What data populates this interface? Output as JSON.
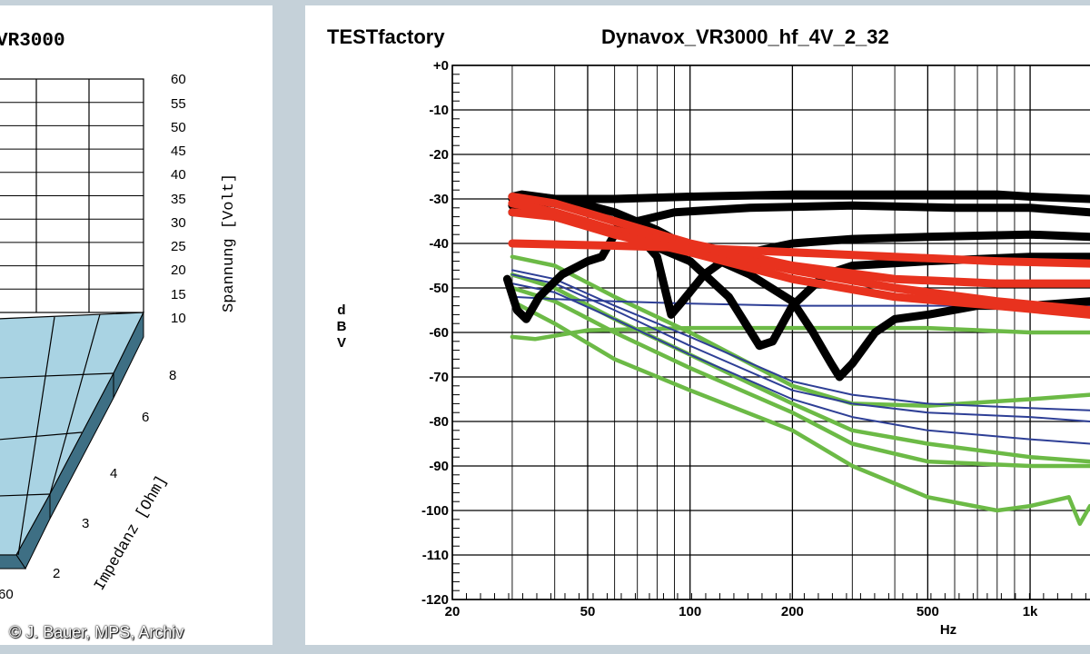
{
  "left_chart": {
    "title": "VR3000",
    "voltage_axis_label": "Spannung [Volt]",
    "voltage_ticks": [
      "60",
      "55",
      "50",
      "45",
      "40",
      "35",
      "30",
      "25",
      "20",
      "15",
      "10"
    ],
    "impedance_axis_label": "Impedanz [Ohm]",
    "impedance_ticks": [
      "8",
      "6",
      "4",
      "3",
      "2"
    ],
    "corner_label": "60",
    "surface_color": "#a9d3e3",
    "side_color": "#3e6f84"
  },
  "credit": "© J. Bauer, MPS, Archiv",
  "chart_data": {
    "type": "line",
    "brand": "TESTfactory",
    "title": "Dynavox_VR3000_hf_4V_2_32",
    "xlabel": "Hz",
    "ylabel": "dBV",
    "x_scale": "log",
    "xlim": [
      20,
      1500
    ],
    "ylim": [
      -120,
      0
    ],
    "x_tick_labels": [
      "20",
      "50",
      "100",
      "200",
      "500",
      "1k"
    ],
    "x_tick_values": [
      20,
      50,
      100,
      200,
      500,
      1000
    ],
    "y_tick_labels": [
      "+0",
      "-10",
      "-20",
      "-30",
      "-40",
      "-50",
      "-60",
      "-70",
      "-80",
      "-90",
      "-100",
      "-110",
      "-120"
    ],
    "y_tick_values": [
      0,
      -10,
      -20,
      -30,
      -40,
      -50,
      -60,
      -70,
      -80,
      -90,
      -100,
      -110,
      -120
    ],
    "grid": true,
    "series": [
      {
        "color": "#000000",
        "weight": "heavy",
        "points": [
          [
            30,
            -29.5
          ],
          [
            32,
            -29
          ],
          [
            40,
            -30
          ],
          [
            60,
            -30
          ],
          [
            100,
            -29.5
          ],
          [
            200,
            -29
          ],
          [
            400,
            -29
          ],
          [
            800,
            -29
          ],
          [
            1000,
            -29.5
          ],
          [
            1500,
            -30
          ]
        ]
      },
      {
        "color": "#000000",
        "weight": "heavy",
        "points": [
          [
            30,
            -31.5
          ],
          [
            35,
            -30.5
          ],
          [
            40,
            -31
          ],
          [
            50,
            -33
          ],
          [
            60,
            -35
          ],
          [
            70,
            -38
          ],
          [
            80,
            -43
          ],
          [
            88,
            -56
          ],
          [
            95,
            -53
          ],
          [
            110,
            -47
          ],
          [
            130,
            -43
          ],
          [
            150,
            -42
          ],
          [
            200,
            -40
          ],
          [
            300,
            -39
          ],
          [
            500,
            -38.5
          ],
          [
            1000,
            -38
          ],
          [
            1500,
            -38.5
          ]
        ]
      },
      {
        "color": "#000000",
        "weight": "heavy",
        "points": [
          [
            30,
            -33
          ],
          [
            35,
            -33
          ],
          [
            40,
            -34
          ],
          [
            50,
            -36
          ],
          [
            70,
            -39
          ],
          [
            100,
            -44
          ],
          [
            130,
            -52
          ],
          [
            160,
            -63
          ],
          [
            175,
            -62
          ],
          [
            200,
            -54
          ],
          [
            250,
            -47
          ],
          [
            300,
            -45
          ],
          [
            500,
            -44
          ],
          [
            1000,
            -43
          ],
          [
            1500,
            -43
          ]
        ]
      },
      {
        "color": "#000000",
        "weight": "heavy",
        "points": [
          [
            29,
            -48
          ],
          [
            31,
            -55
          ],
          [
            33,
            -57
          ],
          [
            36,
            -52
          ],
          [
            42,
            -47
          ],
          [
            50,
            -44
          ],
          [
            55,
            -43
          ],
          [
            60,
            -38
          ],
          [
            70,
            -35
          ],
          [
            90,
            -33
          ],
          [
            150,
            -32
          ],
          [
            300,
            -31.5
          ],
          [
            600,
            -32
          ],
          [
            1000,
            -32
          ],
          [
            1500,
            -33
          ]
        ]
      },
      {
        "color": "#000000",
        "weight": "heavy",
        "points": [
          [
            30,
            -30
          ],
          [
            35,
            -29.5
          ],
          [
            45,
            -30.5
          ],
          [
            60,
            -33
          ],
          [
            80,
            -37
          ],
          [
            100,
            -41
          ],
          [
            150,
            -47
          ],
          [
            200,
            -53
          ],
          [
            230,
            -60
          ],
          [
            260,
            -67
          ],
          [
            275,
            -70
          ],
          [
            300,
            -67
          ],
          [
            350,
            -60
          ],
          [
            400,
            -57
          ],
          [
            500,
            -56
          ],
          [
            700,
            -54
          ],
          [
            1000,
            -54
          ],
          [
            1500,
            -53
          ]
        ]
      },
      {
        "color": "#e8321e",
        "weight": "heavy",
        "points": [
          [
            30,
            -29.5
          ],
          [
            40,
            -31
          ],
          [
            60,
            -35
          ],
          [
            100,
            -40
          ],
          [
            200,
            -45
          ],
          [
            400,
            -48
          ],
          [
            800,
            -49
          ],
          [
            1500,
            -49
          ]
        ]
      },
      {
        "color": "#e8321e",
        "weight": "heavy",
        "points": [
          [
            30,
            -31
          ],
          [
            40,
            -33
          ],
          [
            60,
            -37
          ],
          [
            100,
            -41
          ],
          [
            200,
            -46
          ],
          [
            400,
            -50
          ],
          [
            800,
            -53
          ],
          [
            1500,
            -55
          ]
        ]
      },
      {
        "color": "#e8321e",
        "weight": "heavy",
        "points": [
          [
            30,
            -33
          ],
          [
            40,
            -34
          ],
          [
            60,
            -38
          ],
          [
            100,
            -42
          ],
          [
            200,
            -48
          ],
          [
            400,
            -52
          ],
          [
            800,
            -54
          ],
          [
            1500,
            -56
          ]
        ]
      },
      {
        "color": "#e8321e",
        "weight": "heavy",
        "points": [
          [
            30,
            -40
          ],
          [
            60,
            -40.5
          ],
          [
            100,
            -41
          ],
          [
            200,
            -42
          ],
          [
            400,
            -43
          ],
          [
            800,
            -44
          ],
          [
            1500,
            -44.5
          ]
        ]
      },
      {
        "color": "#2e3f96",
        "weight": "thin",
        "points": [
          [
            30,
            -46
          ],
          [
            40,
            -48
          ],
          [
            60,
            -54
          ],
          [
            100,
            -61
          ],
          [
            200,
            -71
          ],
          [
            300,
            -74
          ],
          [
            500,
            -76
          ],
          [
            1000,
            -77
          ],
          [
            1500,
            -77.5
          ]
        ]
      },
      {
        "color": "#2e3f96",
        "weight": "thin",
        "points": [
          [
            30,
            -47
          ],
          [
            40,
            -49
          ],
          [
            60,
            -55
          ],
          [
            100,
            -63
          ],
          [
            200,
            -73
          ],
          [
            300,
            -76
          ],
          [
            500,
            -78
          ],
          [
            1000,
            -79
          ],
          [
            1500,
            -80
          ]
        ]
      },
      {
        "color": "#2e3f96",
        "weight": "thin",
        "points": [
          [
            30,
            -49
          ],
          [
            40,
            -51
          ],
          [
            60,
            -57
          ],
          [
            100,
            -65
          ],
          [
            200,
            -75
          ],
          [
            300,
            -79
          ],
          [
            500,
            -82
          ],
          [
            1000,
            -84
          ],
          [
            1500,
            -85
          ]
        ]
      },
      {
        "color": "#2e3f96",
        "weight": "thin",
        "points": [
          [
            30,
            -52
          ],
          [
            40,
            -52.5
          ],
          [
            60,
            -53
          ],
          [
            100,
            -53.5
          ],
          [
            200,
            -54
          ],
          [
            400,
            -54
          ],
          [
            1000,
            -54
          ],
          [
            1500,
            -54
          ]
        ]
      },
      {
        "color": "#6cba46",
        "weight": "medium",
        "points": [
          [
            30,
            -43
          ],
          [
            40,
            -45
          ],
          [
            60,
            -52
          ],
          [
            100,
            -60
          ],
          [
            200,
            -72
          ],
          [
            300,
            -76
          ],
          [
            500,
            -76.5
          ],
          [
            1000,
            -75
          ],
          [
            1500,
            -74
          ]
        ]
      },
      {
        "color": "#6cba46",
        "weight": "medium",
        "points": [
          [
            30,
            -47
          ],
          [
            40,
            -50
          ],
          [
            60,
            -57
          ],
          [
            100,
            -65
          ],
          [
            200,
            -76
          ],
          [
            300,
            -82
          ],
          [
            500,
            -85
          ],
          [
            1000,
            -88
          ],
          [
            1500,
            -89
          ]
        ]
      },
      {
        "color": "#6cba46",
        "weight": "medium",
        "points": [
          [
            30,
            -50
          ],
          [
            40,
            -53
          ],
          [
            60,
            -60
          ],
          [
            100,
            -68
          ],
          [
            200,
            -78
          ],
          [
            300,
            -85
          ],
          [
            500,
            -89
          ],
          [
            1000,
            -90
          ],
          [
            1500,
            -90
          ]
        ]
      },
      {
        "color": "#6cba46",
        "weight": "medium",
        "points": [
          [
            30,
            -53
          ],
          [
            40,
            -58
          ],
          [
            60,
            -66
          ],
          [
            100,
            -73
          ],
          [
            200,
            -82
          ],
          [
            300,
            -90
          ],
          [
            500,
            -97
          ],
          [
            800,
            -100
          ],
          [
            1000,
            -99
          ],
          [
            1300,
            -97
          ],
          [
            1400,
            -103
          ],
          [
            1500,
            -99
          ]
        ]
      },
      {
        "color": "#6cba46",
        "weight": "medium",
        "points": [
          [
            30,
            -61
          ],
          [
            35,
            -61.5
          ],
          [
            50,
            -59.5
          ],
          [
            100,
            -59
          ],
          [
            200,
            -59
          ],
          [
            500,
            -59
          ],
          [
            1000,
            -60
          ],
          [
            1500,
            -60
          ]
        ]
      }
    ]
  }
}
